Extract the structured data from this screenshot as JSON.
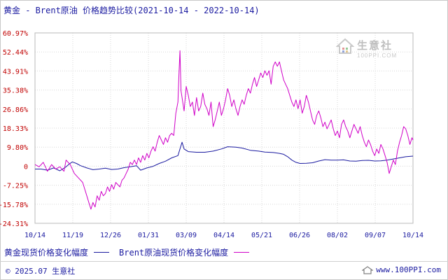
{
  "title": "黄金 - Brent原油 价格趋势比较(2021-10-14 - 2022-10-14)",
  "legend": [
    {
      "name": "黄金现货价格变化幅度",
      "color": "#1a1aa0"
    },
    {
      "name": "Brent原油现货价格变化幅度",
      "color": "#d000c8"
    }
  ],
  "footer": {
    "copyright": "© 2025.07 生意社",
    "url": "www.100PPI.com"
  },
  "watermark": {
    "name": "生意社",
    "url": "100PPI.COM"
  },
  "chart_data": {
    "type": "line",
    "title": "黄金 - Brent原油 价格趋势比较(2021-10-14 - 2022-10-14)",
    "x_ticks": [
      "10/14",
      "11/19",
      "12/26",
      "01/31",
      "03/09",
      "04/14",
      "05/21",
      "06/26",
      "08/02",
      "09/07",
      "10/14"
    ],
    "y_ticks": [
      "60.97%",
      "52.44%",
      "43.91%",
      "35.38%",
      "26.86%",
      "18.33%",
      "9.80%",
      "0",
      "-7.25%",
      "-15.78%",
      "-24.31%"
    ],
    "ylim": [
      -24.31,
      60.97
    ],
    "xlim": [
      0,
      365
    ],
    "grid": true,
    "series": [
      {
        "name": "黄金现货价格变化幅度",
        "color": "#1a1aa0",
        "points": [
          [
            0,
            0
          ],
          [
            6,
            0
          ],
          [
            12,
            -0.5
          ],
          [
            18,
            0.5
          ],
          [
            24,
            -0.8
          ],
          [
            30,
            1
          ],
          [
            33,
            2.2
          ],
          [
            36,
            3.2
          ],
          [
            40,
            2.5
          ],
          [
            44,
            1.5
          ],
          [
            50,
            0.5
          ],
          [
            56,
            -0.3
          ],
          [
            62,
            0
          ],
          [
            68,
            0.4
          ],
          [
            74,
            -0.2
          ],
          [
            80,
            0
          ],
          [
            86,
            0.6
          ],
          [
            92,
            1
          ],
          [
            98,
            1.5
          ],
          [
            102,
            -0.5
          ],
          [
            108,
            0.5
          ],
          [
            114,
            1.2
          ],
          [
            120,
            2.5
          ],
          [
            126,
            3.5
          ],
          [
            132,
            5
          ],
          [
            138,
            6
          ],
          [
            140,
            9
          ],
          [
            142,
            12
          ],
          [
            144,
            9
          ],
          [
            148,
            7.8
          ],
          [
            156,
            7.5
          ],
          [
            164,
            7.5
          ],
          [
            172,
            8
          ],
          [
            180,
            9
          ],
          [
            186,
            10
          ],
          [
            194,
            9.8
          ],
          [
            200,
            9.4
          ],
          [
            208,
            8.4
          ],
          [
            216,
            8
          ],
          [
            222,
            7.6
          ],
          [
            230,
            7.4
          ],
          [
            236,
            7
          ],
          [
            240,
            6.6
          ],
          [
            244,
            5.5
          ],
          [
            248,
            4
          ],
          [
            252,
            3
          ],
          [
            256,
            2.5
          ],
          [
            262,
            2.6
          ],
          [
            268,
            2.8
          ],
          [
            274,
            3.6
          ],
          [
            280,
            4.2
          ],
          [
            286,
            4
          ],
          [
            292,
            4
          ],
          [
            298,
            4.1
          ],
          [
            304,
            3.6
          ],
          [
            310,
            3.5
          ],
          [
            316,
            3.8
          ],
          [
            322,
            3.9
          ],
          [
            328,
            3.6
          ],
          [
            334,
            3.7
          ],
          [
            340,
            4
          ],
          [
            346,
            4.5
          ],
          [
            352,
            5
          ],
          [
            358,
            5.5
          ],
          [
            365,
            5.8
          ]
        ]
      },
      {
        "name": "Brent原油现货价格变化幅度",
        "color": "#d000c8",
        "points": [
          [
            0,
            2
          ],
          [
            4,
            1
          ],
          [
            8,
            3
          ],
          [
            12,
            -1
          ],
          [
            16,
            2
          ],
          [
            20,
            0
          ],
          [
            24,
            1
          ],
          [
            28,
            -1
          ],
          [
            30,
            4
          ],
          [
            34,
            2
          ],
          [
            38,
            -2
          ],
          [
            42,
            -4
          ],
          [
            46,
            -6
          ],
          [
            50,
            -12
          ],
          [
            52,
            -15
          ],
          [
            54,
            -18
          ],
          [
            56,
            -15
          ],
          [
            58,
            -17
          ],
          [
            60,
            -12
          ],
          [
            62,
            -14
          ],
          [
            64,
            -10
          ],
          [
            66,
            -12
          ],
          [
            68,
            -11
          ],
          [
            70,
            -8
          ],
          [
            72,
            -10
          ],
          [
            74,
            -7
          ],
          [
            76,
            -9
          ],
          [
            78,
            -6
          ],
          [
            80,
            -7
          ],
          [
            82,
            -8
          ],
          [
            84,
            -5
          ],
          [
            86,
            -4
          ],
          [
            88,
            -2
          ],
          [
            90,
            0
          ],
          [
            92,
            3
          ],
          [
            94,
            2
          ],
          [
            96,
            4
          ],
          [
            98,
            2
          ],
          [
            100,
            5
          ],
          [
            102,
            3
          ],
          [
            104,
            6
          ],
          [
            106,
            4
          ],
          [
            108,
            7
          ],
          [
            110,
            5
          ],
          [
            112,
            8
          ],
          [
            114,
            10
          ],
          [
            116,
            8
          ],
          [
            118,
            12
          ],
          [
            120,
            15
          ],
          [
            122,
            13
          ],
          [
            124,
            11
          ],
          [
            126,
            14
          ],
          [
            128,
            12
          ],
          [
            130,
            15
          ],
          [
            132,
            16
          ],
          [
            134,
            15
          ],
          [
            136,
            25
          ],
          [
            138,
            30
          ],
          [
            139,
            42
          ],
          [
            140,
            53
          ],
          [
            141,
            35
          ],
          [
            142,
            32
          ],
          [
            144,
            26
          ],
          [
            146,
            37
          ],
          [
            148,
            33
          ],
          [
            150,
            28
          ],
          [
            152,
            30
          ],
          [
            154,
            24
          ],
          [
            156,
            32
          ],
          [
            158,
            26
          ],
          [
            160,
            28
          ],
          [
            162,
            34
          ],
          [
            164,
            29
          ],
          [
            166,
            27
          ],
          [
            168,
            24
          ],
          [
            170,
            30
          ],
          [
            172,
            19
          ],
          [
            174,
            22
          ],
          [
            176,
            26
          ],
          [
            178,
            30
          ],
          [
            180,
            24
          ],
          [
            182,
            27
          ],
          [
            184,
            31
          ],
          [
            186,
            36
          ],
          [
            188,
            33
          ],
          [
            190,
            28
          ],
          [
            192,
            31
          ],
          [
            194,
            27
          ],
          [
            196,
            24
          ],
          [
            198,
            28
          ],
          [
            200,
            31
          ],
          [
            202,
            29
          ],
          [
            204,
            33
          ],
          [
            206,
            36
          ],
          [
            208,
            34
          ],
          [
            210,
            38
          ],
          [
            212,
            41
          ],
          [
            214,
            37
          ],
          [
            216,
            40
          ],
          [
            218,
            43
          ],
          [
            220,
            41
          ],
          [
            222,
            44
          ],
          [
            224,
            42
          ],
          [
            226,
            44
          ],
          [
            228,
            38
          ],
          [
            230,
            46
          ],
          [
            232,
            48
          ],
          [
            234,
            46
          ],
          [
            236,
            48
          ],
          [
            238,
            44
          ],
          [
            240,
            40
          ],
          [
            242,
            38
          ],
          [
            244,
            36
          ],
          [
            246,
            33
          ],
          [
            248,
            30
          ],
          [
            250,
            28
          ],
          [
            252,
            31
          ],
          [
            254,
            27
          ],
          [
            256,
            31
          ],
          [
            258,
            25
          ],
          [
            260,
            28
          ],
          [
            262,
            33
          ],
          [
            264,
            30
          ],
          [
            266,
            26
          ],
          [
            268,
            22
          ],
          [
            270,
            20
          ],
          [
            272,
            24
          ],
          [
            274,
            26
          ],
          [
            276,
            23
          ],
          [
            278,
            19
          ],
          [
            280,
            21
          ],
          [
            282,
            18
          ],
          [
            284,
            20
          ],
          [
            286,
            22
          ],
          [
            288,
            18
          ],
          [
            290,
            15
          ],
          [
            292,
            17
          ],
          [
            294,
            14
          ],
          [
            296,
            20
          ],
          [
            298,
            22
          ],
          [
            300,
            19
          ],
          [
            302,
            17
          ],
          [
            304,
            14
          ],
          [
            306,
            17
          ],
          [
            308,
            20
          ],
          [
            310,
            18
          ],
          [
            312,
            16
          ],
          [
            314,
            19
          ],
          [
            316,
            15
          ],
          [
            318,
            12
          ],
          [
            320,
            10
          ],
          [
            322,
            13
          ],
          [
            324,
            11
          ],
          [
            326,
            8
          ],
          [
            328,
            6
          ],
          [
            330,
            9
          ],
          [
            332,
            7
          ],
          [
            334,
            11
          ],
          [
            336,
            9
          ],
          [
            338,
            6
          ],
          [
            340,
            3
          ],
          [
            342,
            -2
          ],
          [
            344,
            1
          ],
          [
            346,
            4
          ],
          [
            348,
            2
          ],
          [
            350,
            8
          ],
          [
            352,
            12
          ],
          [
            354,
            15
          ],
          [
            356,
            19
          ],
          [
            358,
            18
          ],
          [
            360,
            15
          ],
          [
            362,
            11
          ],
          [
            364,
            14
          ],
          [
            365,
            13
          ]
        ]
      }
    ]
  }
}
